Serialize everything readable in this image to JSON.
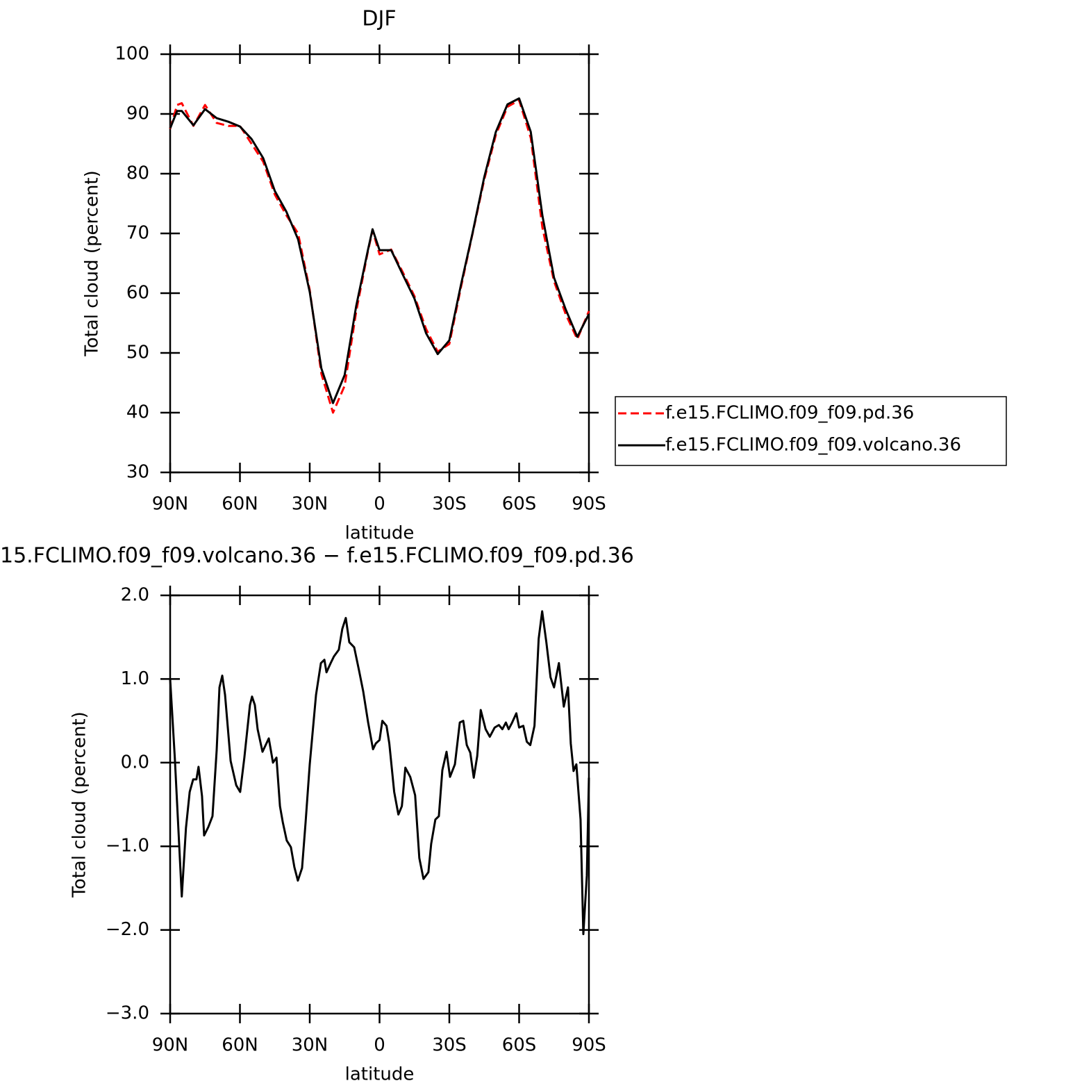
{
  "chart_data": [
    {
      "type": "line",
      "title": "DJF",
      "x_label": "latitude",
      "y_label": "Total cloud (percent)",
      "xlim": [
        90,
        -90
      ],
      "xticks": [
        {
          "value": 90,
          "label": "90N"
        },
        {
          "value": 60,
          "label": "60N"
        },
        {
          "value": 30,
          "label": "30N"
        },
        0,
        {
          "value": -30,
          "label": "30S"
        },
        {
          "value": -60,
          "label": "60S"
        },
        {
          "value": -90,
          "label": "90S"
        }
      ],
      "ylim": [
        30,
        100
      ],
      "yticks": [
        30,
        40,
        50,
        60,
        70,
        80,
        90,
        100
      ],
      "legend": "right",
      "x": [
        90,
        87,
        85,
        80,
        75,
        70,
        65,
        60,
        55,
        50,
        45,
        40,
        35,
        30,
        25,
        20,
        15,
        10,
        5,
        3,
        0,
        -5,
        -10,
        -15,
        -20,
        -25,
        -30,
        -35,
        -40,
        -45,
        -50,
        -55,
        -60,
        -65,
        -70,
        -75,
        -80,
        -85,
        -90
      ],
      "series": [
        {
          "name": "f.e15.FCLIMO.f09_f09.pd.36",
          "color": "#ff0000",
          "line_style": "dashed",
          "values": [
            87.5,
            91.5,
            91.8,
            88,
            91.5,
            88.5,
            88,
            88,
            85,
            82,
            76.5,
            73,
            70,
            60.5,
            46.5,
            40,
            44.5,
            57,
            67,
            70.5,
            66.5,
            67.3,
            63.5,
            59.5,
            54,
            50.2,
            51.5,
            61,
            70,
            79,
            86.5,
            91.2,
            92.3,
            86,
            71,
            62,
            56.5,
            52.3,
            57
          ]
        },
        {
          "name": "f.e15.FCLIMO.f09_f09.volcano.36",
          "color": "#000000",
          "line_style": "solid",
          "values": [
            87.6,
            90.5,
            90.5,
            88.1,
            90.8,
            89.3,
            88.7,
            87.9,
            85.8,
            82.6,
            77.1,
            73.6,
            69,
            60.2,
            47.4,
            41.6,
            46.3,
            57.9,
            67.2,
            70.7,
            67.2,
            67.2,
            63.1,
            59.1,
            53.3,
            49.8,
            52.1,
            61.4,
            70.1,
            79.4,
            87,
            91.6,
            92.6,
            87,
            73,
            62.6,
            57.3,
            52.7,
            56.5
          ]
        }
      ]
    },
    {
      "type": "line",
      "title": "15.FCLIMO.f09_f09.volcano.36 − f.e15.FCLIMO.f09_f09.pd.36",
      "x_label": "latitude",
      "y_label": "Total cloud (percent)",
      "xlim": [
        90,
        -90
      ],
      "xticks": [
        {
          "value": 90,
          "label": "90N"
        },
        {
          "value": 60,
          "label": "60N"
        },
        {
          "value": 30,
          "label": "30N"
        },
        0,
        {
          "value": -30,
          "label": "30S"
        },
        {
          "value": -60,
          "label": "60S"
        },
        {
          "value": -90,
          "label": "90S"
        }
      ],
      "ylim": [
        -3,
        2
      ],
      "yticks": [
        {
          "value": -3,
          "label": "−3.0"
        },
        {
          "value": -2,
          "label": "−2.0"
        },
        {
          "value": -1,
          "label": "−1.0"
        },
        {
          "value": 0,
          "label": "0.0"
        },
        {
          "value": 1,
          "label": "1.0"
        },
        {
          "value": 2,
          "label": "2.0"
        }
      ],
      "x": [
        90,
        88,
        85,
        83.2,
        81.6,
        80.1,
        78.7,
        77.8,
        76.3,
        75.4,
        73.6,
        71.8,
        70,
        68.8,
        67.6,
        66.4,
        64,
        61.6,
        59.9,
        58.1,
        55.7,
        54.8,
        53.6,
        52.4,
        50.3,
        47.6,
        45.8,
        44.3,
        42.8,
        41.6,
        39.9,
        38.1,
        36.6,
        35.1,
        33.3,
        31.8,
        30,
        27.3,
        25.2,
        23.7,
        22.8,
        21,
        19.6,
        17.5,
        16,
        14.5,
        13,
        10.9,
        8.8,
        7,
        4.9,
        2.8,
        1.6,
        0,
        -1.2,
        -3,
        -4.2,
        -6.3,
        -8.1,
        -9.6,
        -11.1,
        -13.2,
        -15.3,
        -17.1,
        -18.9,
        -21,
        -22.2,
        -24,
        -25.5,
        -27,
        -28.8,
        -30.3,
        -32.4,
        -34.5,
        -36,
        -37.5,
        -39,
        -40.5,
        -42,
        -43.5,
        -45.6,
        -47.4,
        -49.5,
        -51.3,
        -52.8,
        -54.3,
        -55.5,
        -57,
        -58.8,
        -60,
        -61.8,
        -63.3,
        -64.8,
        -66.6,
        -68.4,
        -69.9,
        -71.7,
        -73.5,
        -75,
        -77.1,
        -79.2,
        -81,
        -82.2,
        -83.4,
        -84.6,
        -86.4,
        -87.6,
        -89.1,
        -90
      ],
      "series": [
        {
          "color": "#000000",
          "line_style": "solid",
          "values": [
            1.0,
            0.06,
            -1.6,
            -0.78,
            -0.35,
            -0.2,
            -0.2,
            -0.05,
            -0.4,
            -0.87,
            -0.77,
            -0.64,
            0.15,
            0.9,
            1.04,
            0.81,
            0.02,
            -0.27,
            -0.35,
            0.06,
            0.69,
            0.79,
            0.69,
            0.4,
            0.13,
            0.29,
            0,
            0.06,
            -0.52,
            -0.71,
            -0.93,
            -1.01,
            -1.25,
            -1.41,
            -1.26,
            -0.72,
            -0.02,
            0.81,
            1.19,
            1.23,
            1.08,
            1.19,
            1.27,
            1.35,
            1.6,
            1.73,
            1.44,
            1.38,
            1.1,
            0.85,
            0.48,
            0.16,
            0.23,
            0.27,
            0.5,
            0.44,
            0.23,
            -0.35,
            -0.62,
            -0.52,
            -0.06,
            -0.17,
            -0.39,
            -1.14,
            -1.39,
            -1.31,
            -0.97,
            -0.68,
            -0.64,
            -0.09,
            0.13,
            -0.17,
            -0.02,
            0.48,
            0.5,
            0.21,
            0.12,
            -0.18,
            0.08,
            0.63,
            0.4,
            0.31,
            0.42,
            0.45,
            0.4,
            0.48,
            0.4,
            0.48,
            0.59,
            0.42,
            0.44,
            0.25,
            0.21,
            0.44,
            1.48,
            1.81,
            1.44,
            1.02,
            0.9,
            1.19,
            0.67,
            0.9,
            0.23,
            -0.1,
            -0.02,
            -0.68,
            -2.05,
            -1.35,
            -0.18
          ]
        }
      ]
    }
  ]
}
